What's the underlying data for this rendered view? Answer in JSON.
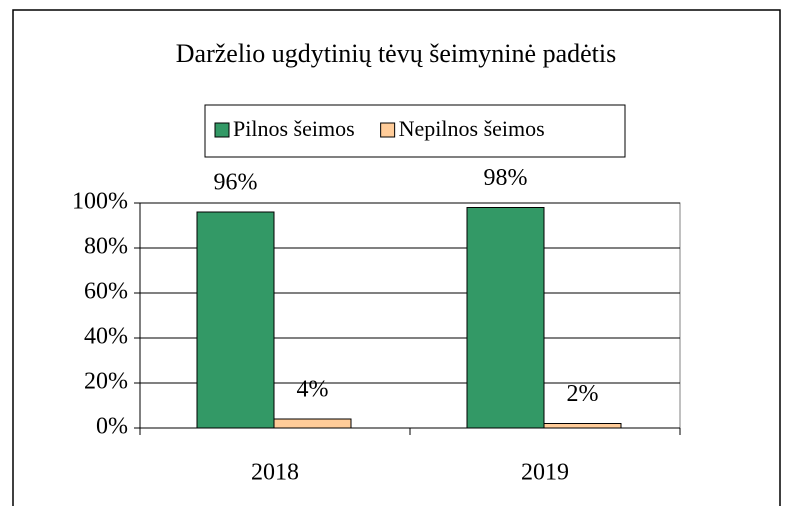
{
  "chart_data": {
    "type": "bar",
    "title": "Darželio ugdytinių tėvų šeimyninė padėtis",
    "categories": [
      "2018",
      "2019"
    ],
    "series": [
      {
        "name": "Pilnos šeimos",
        "color": "#339966",
        "values": [
          96,
          98
        ],
        "value_labels": [
          "96%",
          "98%"
        ]
      },
      {
        "name": "Nepilnos šeimos",
        "color": "#ffcc99",
        "values": [
          4,
          2
        ],
        "value_labels": [
          "4%",
          "2%"
        ]
      }
    ],
    "ylim": [
      0,
      100
    ],
    "yticks": [
      {
        "value": 0,
        "label": "0%"
      },
      {
        "value": 20,
        "label": "20%"
      },
      {
        "value": 40,
        "label": "40%"
      },
      {
        "value": 60,
        "label": "60%"
      },
      {
        "value": 80,
        "label": "80%"
      },
      {
        "value": 100,
        "label": "100%"
      }
    ],
    "grid": true,
    "legend": "top"
  }
}
